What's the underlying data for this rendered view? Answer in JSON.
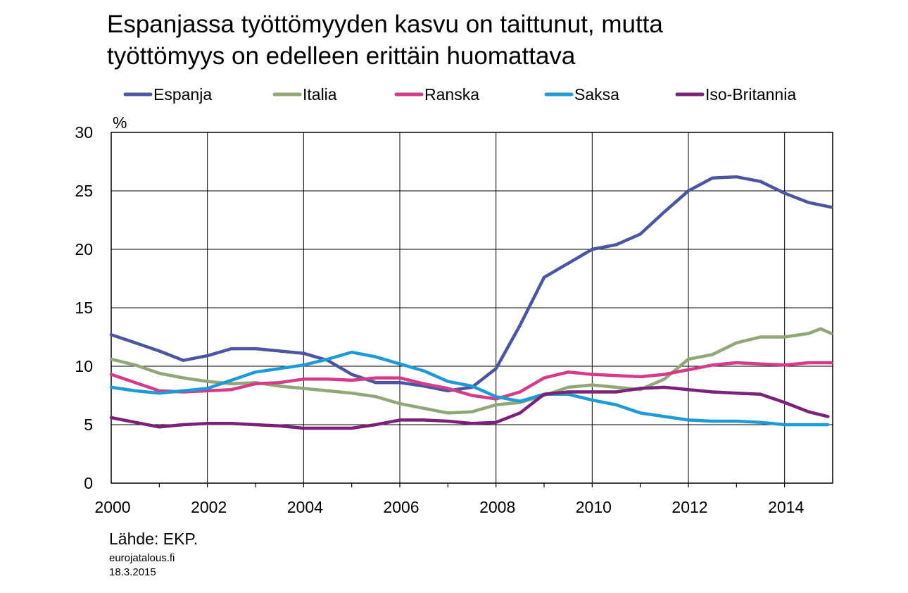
{
  "chart_data": {
    "type": "line",
    "title_lines": [
      "Espanjassa työttömyyden kasvu on taittunut, mutta",
      "työttömyys on edelleen erittäin huomattava"
    ],
    "ylabel": "%",
    "ylim": [
      0,
      30
    ],
    "yticks": [
      0,
      5,
      10,
      15,
      20,
      25,
      30
    ],
    "xlim": [
      2000,
      2015
    ],
    "xtick_labels": [
      "2000",
      "2002",
      "2004",
      "2006",
      "2008",
      "2010",
      "2012",
      "2014"
    ],
    "grid": true,
    "legend_position": "top",
    "series": [
      {
        "name": "Espanja",
        "color": "#4b55a0",
        "x": [
          2000,
          2000.5,
          2001,
          2001.5,
          2002,
          2002.5,
          2003,
          2003.5,
          2004,
          2004.5,
          2005,
          2005.5,
          2006,
          2006.5,
          2007,
          2007.5,
          2008,
          2008.5,
          2009,
          2009.5,
          2010,
          2010.5,
          2011,
          2011.5,
          2012,
          2012.5,
          2013,
          2013.5,
          2014,
          2014.5,
          2014.97
        ],
        "y": [
          12.7,
          12.0,
          11.3,
          10.5,
          10.9,
          11.5,
          11.5,
          11.3,
          11.1,
          10.5,
          9.3,
          8.6,
          8.6,
          8.3,
          7.9,
          8.2,
          9.8,
          13.5,
          17.6,
          18.8,
          20.0,
          20.4,
          21.3,
          23.2,
          25.0,
          26.1,
          26.2,
          25.8,
          24.8,
          24.0,
          23.6
        ]
      },
      {
        "name": "Italia",
        "color": "#8fa876",
        "x": [
          2000,
          2000.5,
          2001,
          2001.5,
          2002,
          2002.5,
          2003,
          2003.5,
          2004,
          2004.5,
          2005,
          2005.5,
          2006,
          2006.5,
          2007,
          2007.5,
          2008,
          2008.5,
          2009,
          2009.5,
          2010,
          2010.5,
          2011,
          2011.5,
          2012,
          2012.5,
          2013,
          2013.5,
          2014,
          2014.5,
          2014.75,
          2014.97
        ],
        "y": [
          10.6,
          10.1,
          9.4,
          9.0,
          8.7,
          8.5,
          8.6,
          8.3,
          8.1,
          7.9,
          7.7,
          7.4,
          6.8,
          6.4,
          6.0,
          6.1,
          6.7,
          6.9,
          7.5,
          8.2,
          8.4,
          8.2,
          8.0,
          8.9,
          10.6,
          11.0,
          12.0,
          12.5,
          12.5,
          12.8,
          13.2,
          12.8
        ]
      },
      {
        "name": "Ranska",
        "color": "#d63b8a",
        "x": [
          2000,
          2000.5,
          2001,
          2001.5,
          2002,
          2002.5,
          2003,
          2003.5,
          2004,
          2004.5,
          2005,
          2005.5,
          2006,
          2006.5,
          2007,
          2007.5,
          2008,
          2008.5,
          2009,
          2009.5,
          2010,
          2010.5,
          2011,
          2011.5,
          2012,
          2012.5,
          2013,
          2013.5,
          2014,
          2014.5,
          2014.97
        ],
        "y": [
          9.3,
          8.6,
          7.9,
          7.8,
          7.9,
          8.0,
          8.5,
          8.6,
          8.9,
          8.9,
          8.8,
          9.0,
          9.0,
          8.5,
          8.1,
          7.5,
          7.2,
          7.8,
          9.0,
          9.5,
          9.3,
          9.2,
          9.1,
          9.3,
          9.7,
          10.1,
          10.3,
          10.2,
          10.1,
          10.3,
          10.3
        ]
      },
      {
        "name": "Saksa",
        "color": "#1e9ad6",
        "x": [
          2000,
          2000.5,
          2001,
          2001.5,
          2002,
          2002.5,
          2003,
          2003.5,
          2004,
          2004.5,
          2005,
          2005.5,
          2006,
          2006.5,
          2007,
          2007.5,
          2008,
          2008.5,
          2009,
          2009.5,
          2010,
          2010.5,
          2011,
          2011.5,
          2012,
          2012.5,
          2013,
          2013.5,
          2014,
          2014.5,
          2014.9
        ],
        "y": [
          8.2,
          7.9,
          7.7,
          7.9,
          8.1,
          8.8,
          9.5,
          9.8,
          10.1,
          10.6,
          11.2,
          10.8,
          10.2,
          9.6,
          8.7,
          8.3,
          7.4,
          7.0,
          7.6,
          7.6,
          7.1,
          6.7,
          6.0,
          5.7,
          5.4,
          5.3,
          5.3,
          5.2,
          5.0,
          5.0,
          5.0
        ]
      },
      {
        "name": "Iso-Britannia",
        "color": "#7b2278",
        "x": [
          2000,
          2000.5,
          2001,
          2001.5,
          2002,
          2002.5,
          2003,
          2003.5,
          2004,
          2004.5,
          2005,
          2005.5,
          2006,
          2006.5,
          2007,
          2007.5,
          2008,
          2008.5,
          2009,
          2009.5,
          2010,
          2010.5,
          2011,
          2011.5,
          2012,
          2012.5,
          2013,
          2013.5,
          2014,
          2014.5,
          2014.9
        ],
        "y": [
          5.6,
          5.2,
          4.8,
          5.0,
          5.1,
          5.1,
          5.0,
          4.9,
          4.7,
          4.7,
          4.7,
          5.0,
          5.4,
          5.4,
          5.3,
          5.1,
          5.2,
          6.0,
          7.6,
          7.8,
          7.8,
          7.8,
          8.1,
          8.2,
          8.0,
          7.8,
          7.7,
          7.6,
          6.9,
          6.1,
          5.7
        ]
      }
    ]
  },
  "footer": {
    "source": "Lähde: EKP.",
    "site": "eurojatalous.fi",
    "date": "18.3.2015"
  }
}
